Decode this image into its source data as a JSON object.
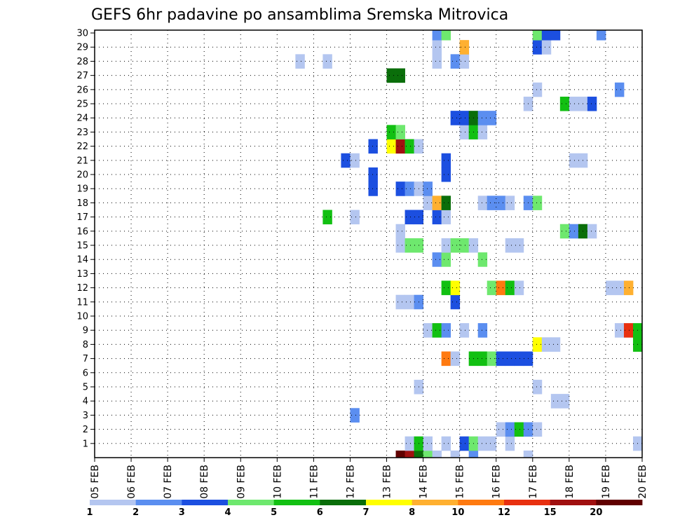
{
  "chart_data": {
    "type": "heatmap",
    "title": "GEFS 6hr padavine po ansamblima Sremska Mitrovica",
    "xlabel": "",
    "ylabel": "",
    "x_ticks": [
      "05 FEB",
      "06 FEB",
      "07 FEB",
      "08 FEB",
      "09 FEB",
      "10 FEB",
      "11 FEB",
      "12 FEB",
      "13 FEB",
      "14 FEB",
      "15 FEB",
      "16 FEB",
      "17 FEB",
      "18 FEB",
      "19 FEB",
      "20 FEB"
    ],
    "y_ticks": [
      1,
      2,
      3,
      4,
      5,
      6,
      7,
      8,
      9,
      10,
      11,
      12,
      13,
      14,
      15,
      16,
      17,
      18,
      19,
      20,
      21,
      22,
      23,
      24,
      25,
      26,
      27,
      28,
      29,
      30
    ],
    "xlim_days": [
      0,
      15
    ],
    "ylim": [
      0,
      30
    ],
    "grid": true,
    "colorbar": {
      "labels": [
        "1",
        "2",
        "3",
        "4",
        "5",
        "6",
        "7",
        "8",
        "10",
        "12",
        "15",
        "20"
      ],
      "colors": [
        "#b4c6f0",
        "#5b8ef0",
        "#1c4fe0",
        "#6ee86e",
        "#12c012",
        "#0a6e0a",
        "#ffff00",
        "#ffb030",
        "#ff7a10",
        "#e83010",
        "#a01010",
        "#600000"
      ]
    },
    "values": [
      {
        "m": 0,
        "t": 33,
        "c": 12
      },
      {
        "m": 0,
        "t": 34,
        "c": 11
      },
      {
        "m": 0,
        "t": 35,
        "c": 6
      },
      {
        "m": 0,
        "t": 36,
        "c": 4
      },
      {
        "m": 0,
        "t": 37,
        "c": 1
      },
      {
        "m": 0,
        "t": 39,
        "c": 1
      },
      {
        "m": 0,
        "t": 41,
        "c": 2
      },
      {
        "m": 0,
        "t": 47,
        "c": 1
      },
      {
        "m": 1,
        "t": 34,
        "c": 1
      },
      {
        "m": 1,
        "t": 35,
        "c": 5
      },
      {
        "m": 1,
        "t": 36,
        "c": 1
      },
      {
        "m": 1,
        "t": 38,
        "c": 1
      },
      {
        "m": 1,
        "t": 40,
        "c": 3
      },
      {
        "m": 1,
        "t": 41,
        "c": 4
      },
      {
        "m": 1,
        "t": 42,
        "c": 1
      },
      {
        "m": 1,
        "t": 43,
        "c": 1
      },
      {
        "m": 1,
        "t": 45,
        "c": 1
      },
      {
        "m": 1,
        "t": 59,
        "c": 1
      },
      {
        "m": 2,
        "t": 44,
        "c": 1
      },
      {
        "m": 2,
        "t": 45,
        "c": 2
      },
      {
        "m": 2,
        "t": 46,
        "c": 5
      },
      {
        "m": 2,
        "t": 47,
        "c": 2
      },
      {
        "m": 2,
        "t": 48,
        "c": 1
      },
      {
        "m": 3,
        "t": 28,
        "c": 2
      },
      {
        "m": 4,
        "t": 50,
        "c": 1
      },
      {
        "m": 4,
        "t": 51,
        "c": 1
      },
      {
        "m": 5,
        "t": 35,
        "c": 1
      },
      {
        "m": 5,
        "t": 48,
        "c": 1
      },
      {
        "m": 7,
        "t": 38,
        "c": 9
      },
      {
        "m": 7,
        "t": 39,
        "c": 1
      },
      {
        "m": 7,
        "t": 41,
        "c": 5
      },
      {
        "m": 7,
        "t": 42,
        "c": 5
      },
      {
        "m": 7,
        "t": 43,
        "c": 4
      },
      {
        "m": 7,
        "t": 44,
        "c": 3
      },
      {
        "m": 7,
        "t": 45,
        "c": 3
      },
      {
        "m": 7,
        "t": 46,
        "c": 3
      },
      {
        "m": 7,
        "t": 47,
        "c": 3
      },
      {
        "m": 8,
        "t": 48,
        "c": 7
      },
      {
        "m": 8,
        "t": 49,
        "c": 1
      },
      {
        "m": 8,
        "t": 50,
        "c": 1
      },
      {
        "m": 8,
        "t": 59,
        "c": 5
      },
      {
        "m": 9,
        "t": 36,
        "c": 1
      },
      {
        "m": 9,
        "t": 37,
        "c": 5
      },
      {
        "m": 9,
        "t": 38,
        "c": 2
      },
      {
        "m": 9,
        "t": 40,
        "c": 1
      },
      {
        "m": 9,
        "t": 42,
        "c": 2
      },
      {
        "m": 9,
        "t": 57,
        "c": 1
      },
      {
        "m": 9,
        "t": 58,
        "c": 10
      },
      {
        "m": 9,
        "t": 59,
        "c": 5
      },
      {
        "m": 11,
        "t": 33,
        "c": 1
      },
      {
        "m": 11,
        "t": 34,
        "c": 1
      },
      {
        "m": 11,
        "t": 35,
        "c": 2
      },
      {
        "m": 11,
        "t": 39,
        "c": 3
      },
      {
        "m": 12,
        "t": 38,
        "c": 5
      },
      {
        "m": 12,
        "t": 39,
        "c": 7
      },
      {
        "m": 12,
        "t": 43,
        "c": 4
      },
      {
        "m": 12,
        "t": 44,
        "c": 9
      },
      {
        "m": 12,
        "t": 45,
        "c": 5
      },
      {
        "m": 12,
        "t": 46,
        "c": 1
      },
      {
        "m": 12,
        "t": 56,
        "c": 1
      },
      {
        "m": 12,
        "t": 57,
        "c": 1
      },
      {
        "m": 12,
        "t": 58,
        "c": 8
      },
      {
        "m": 14,
        "t": 37,
        "c": 2
      },
      {
        "m": 14,
        "t": 38,
        "c": 4
      },
      {
        "m": 14,
        "t": 42,
        "c": 4
      },
      {
        "m": 15,
        "t": 33,
        "c": 1
      },
      {
        "m": 15,
        "t": 34,
        "c": 4
      },
      {
        "m": 15,
        "t": 35,
        "c": 4
      },
      {
        "m": 15,
        "t": 38,
        "c": 1
      },
      {
        "m": 15,
        "t": 39,
        "c": 4
      },
      {
        "m": 15,
        "t": 40,
        "c": 4
      },
      {
        "m": 15,
        "t": 41,
        "c": 1
      },
      {
        "m": 15,
        "t": 45,
        "c": 1
      },
      {
        "m": 15,
        "t": 46,
        "c": 1
      },
      {
        "m": 16,
        "t": 33,
        "c": 1
      },
      {
        "m": 16,
        "t": 51,
        "c": 4
      },
      {
        "m": 16,
        "t": 52,
        "c": 2
      },
      {
        "m": 16,
        "t": 53,
        "c": 6
      },
      {
        "m": 16,
        "t": 54,
        "c": 1
      },
      {
        "m": 17,
        "t": 25,
        "c": 5
      },
      {
        "m": 17,
        "t": 28,
        "c": 1
      },
      {
        "m": 17,
        "t": 34,
        "c": 3
      },
      {
        "m": 17,
        "t": 35,
        "c": 3
      },
      {
        "m": 17,
        "t": 37,
        "c": 3
      },
      {
        "m": 17,
        "t": 38,
        "c": 1
      },
      {
        "m": 18,
        "t": 36,
        "c": 1
      },
      {
        "m": 18,
        "t": 37,
        "c": 8
      },
      {
        "m": 18,
        "t": 38,
        "c": 6
      },
      {
        "m": 18,
        "t": 42,
        "c": 1
      },
      {
        "m": 18,
        "t": 43,
        "c": 2
      },
      {
        "m": 18,
        "t": 44,
        "c": 2
      },
      {
        "m": 18,
        "t": 45,
        "c": 1
      },
      {
        "m": 18,
        "t": 47,
        "c": 2
      },
      {
        "m": 18,
        "t": 48,
        "c": 4
      },
      {
        "m": 19,
        "t": 30,
        "c": 3
      },
      {
        "m": 19,
        "t": 33,
        "c": 3
      },
      {
        "m": 19,
        "t": 34,
        "c": 2
      },
      {
        "m": 19,
        "t": 35,
        "c": 1
      },
      {
        "m": 19,
        "t": 36,
        "c": 2
      },
      {
        "m": 20,
        "t": 30,
        "c": 3
      },
      {
        "m": 20,
        "t": 38,
        "c": 3
      },
      {
        "m": 21,
        "t": 27,
        "c": 3
      },
      {
        "m": 21,
        "t": 28,
        "c": 1
      },
      {
        "m": 21,
        "t": 38,
        "c": 3
      },
      {
        "m": 21,
        "t": 52,
        "c": 1
      },
      {
        "m": 21,
        "t": 53,
        "c": 1
      },
      {
        "m": 22,
        "t": 30,
        "c": 3
      },
      {
        "m": 22,
        "t": 32,
        "c": 7
      },
      {
        "m": 22,
        "t": 33,
        "c": 11
      },
      {
        "m": 22,
        "t": 34,
        "c": 5
      },
      {
        "m": 22,
        "t": 35,
        "c": 1
      },
      {
        "m": 23,
        "t": 32,
        "c": 5
      },
      {
        "m": 23,
        "t": 33,
        "c": 4
      },
      {
        "m": 23,
        "t": 40,
        "c": 1
      },
      {
        "m": 23,
        "t": 41,
        "c": 5
      },
      {
        "m": 23,
        "t": 42,
        "c": 1
      },
      {
        "m": 24,
        "t": 39,
        "c": 3
      },
      {
        "m": 24,
        "t": 40,
        "c": 3
      },
      {
        "m": 24,
        "t": 41,
        "c": 6
      },
      {
        "m": 24,
        "t": 42,
        "c": 2
      },
      {
        "m": 24,
        "t": 43,
        "c": 2
      },
      {
        "m": 25,
        "t": 47,
        "c": 1
      },
      {
        "m": 25,
        "t": 51,
        "c": 5
      },
      {
        "m": 25,
        "t": 52,
        "c": 1
      },
      {
        "m": 25,
        "t": 53,
        "c": 1
      },
      {
        "m": 25,
        "t": 54,
        "c": 3
      },
      {
        "m": 26,
        "t": 48,
        "c": 1
      },
      {
        "m": 26,
        "t": 57,
        "c": 2
      },
      {
        "m": 27,
        "t": 32,
        "c": 6
      },
      {
        "m": 27,
        "t": 33,
        "c": 6
      },
      {
        "m": 28,
        "t": 22,
        "c": 1
      },
      {
        "m": 28,
        "t": 25,
        "c": 1
      },
      {
        "m": 28,
        "t": 37,
        "c": 1
      },
      {
        "m": 28,
        "t": 39,
        "c": 2
      },
      {
        "m": 28,
        "t": 40,
        "c": 1
      },
      {
        "m": 29,
        "t": 37,
        "c": 1
      },
      {
        "m": 29,
        "t": 40,
        "c": 8
      },
      {
        "m": 29,
        "t": 48,
        "c": 3
      },
      {
        "m": 29,
        "t": 49,
        "c": 1
      },
      {
        "m": 30,
        "t": 37,
        "c": 2
      },
      {
        "m": 30,
        "t": 38,
        "c": 4
      },
      {
        "m": 30,
        "t": 48,
        "c": 4
      },
      {
        "m": 30,
        "t": 49,
        "c": 3
      },
      {
        "m": 30,
        "t": 50,
        "c": 3
      },
      {
        "m": 30,
        "t": 55,
        "c": 2
      }
    ]
  }
}
